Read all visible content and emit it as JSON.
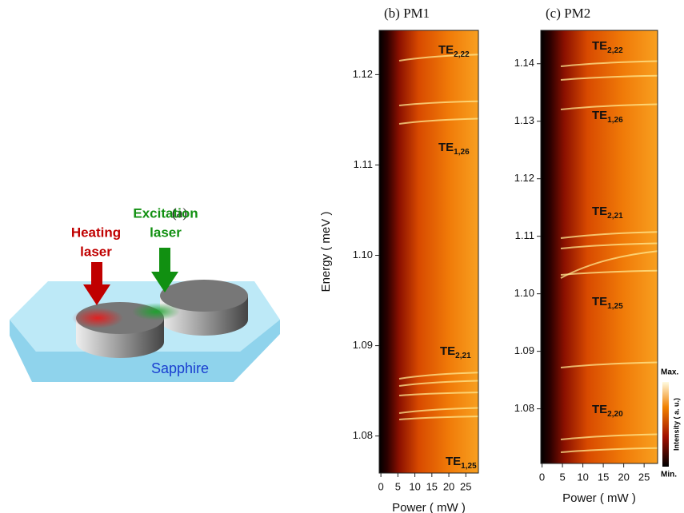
{
  "panel_a": {
    "label": "(a)",
    "heating_laser": [
      "Heating",
      "laser"
    ],
    "excitation_laser": [
      "Excitation",
      "laser"
    ],
    "substrate": "Sapphire"
  },
  "chart_data": [
    {
      "type": "heatmap",
      "title": "(b) PM1",
      "x_label": "Power ( mW )",
      "y_label": "Energy ( meV )",
      "xlim": [
        -0.5,
        28.7
      ],
      "ylim": [
        1.0759,
        1.1249
      ],
      "xticks": [
        0,
        5,
        10,
        15,
        20,
        25
      ],
      "yticks": [
        1.08,
        1.09,
        {
          "value": 1.1,
          "label": "1.10"
        },
        1.11,
        1.12
      ],
      "annotations": [
        {
          "text": "TE",
          "sub": "2,22"
        },
        {
          "text": "TE",
          "sub": "1,26"
        },
        {
          "text": "TE",
          "sub": "2,21"
        },
        {
          "text": "TE",
          "sub": "1,25"
        }
      ]
    },
    {
      "type": "heatmap",
      "title": "(c) PM2",
      "x_label": "Power ( mW )",
      "xlim": [
        -0.3,
        28.3
      ],
      "ylim": [
        1.0705,
        1.1458
      ],
      "xticks": [
        0,
        5,
        10,
        15,
        20,
        25
      ],
      "yticks": [
        1.08,
        1.09,
        {
          "value": 1.1,
          "label": "1.10"
        },
        1.11,
        1.12,
        1.13,
        1.14
      ],
      "annotations": [
        {
          "text": "TE",
          "sub": "2,22"
        },
        {
          "text": "TE",
          "sub": "1,26"
        },
        {
          "text": "TE",
          "sub": "2,21"
        },
        {
          "text": "TE",
          "sub": "1,25"
        },
        {
          "text": "TE",
          "sub": "2,20"
        }
      ]
    }
  ],
  "colorbar": {
    "title": "Intensity ( a. u.)",
    "max": "Max.",
    "min": "Min."
  }
}
